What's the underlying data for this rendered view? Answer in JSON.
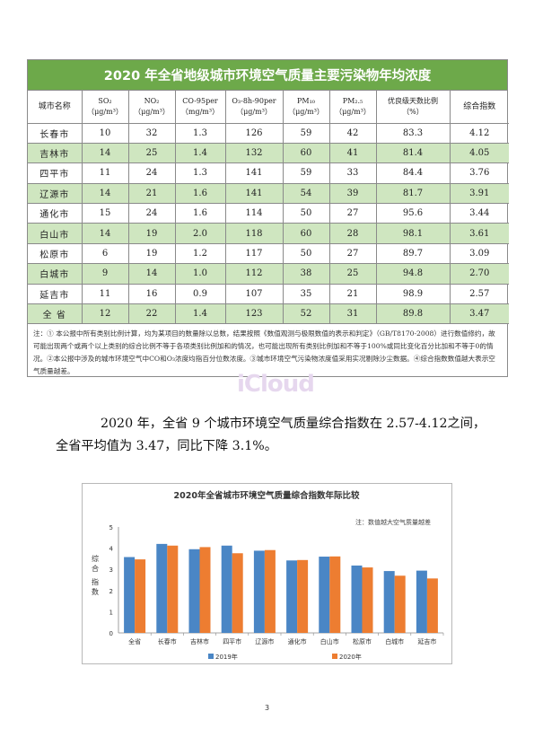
{
  "table": {
    "title": "2020 年全省地级城市环境空气质量主要污染物年均浓度",
    "headers": [
      {
        "l1": "城市名称",
        "l2": ""
      },
      {
        "l1": "SO₂",
        "l2": "（μg/m³）"
      },
      {
        "l1": "NO₂",
        "l2": "（μg/m³）"
      },
      {
        "l1": "CO-95per",
        "l2": "（mg/m³）"
      },
      {
        "l1": "O₃-8h-90per",
        "l2": "（μg/m³）"
      },
      {
        "l1": "PM₁₀",
        "l2": "（μg/m³）"
      },
      {
        "l1": "PM₂.₅",
        "l2": "（μg/m³）"
      },
      {
        "l1": "优良级天数比例",
        "l2": "（%）"
      },
      {
        "l1": "综合指数",
        "l2": ""
      }
    ],
    "rows": [
      [
        "长春市",
        "10",
        "32",
        "1.3",
        "126",
        "59",
        "42",
        "83.3",
        "4.12"
      ],
      [
        "吉林市",
        "14",
        "25",
        "1.4",
        "132",
        "60",
        "41",
        "81.4",
        "4.05"
      ],
      [
        "四平市",
        "11",
        "24",
        "1.3",
        "141",
        "59",
        "33",
        "84.4",
        "3.76"
      ],
      [
        "辽源市",
        "14",
        "21",
        "1.6",
        "141",
        "54",
        "39",
        "81.7",
        "3.91"
      ],
      [
        "通化市",
        "15",
        "24",
        "1.6",
        "114",
        "50",
        "27",
        "95.6",
        "3.44"
      ],
      [
        "白山市",
        "14",
        "19",
        "2.0",
        "118",
        "60",
        "28",
        "98.1",
        "3.61"
      ],
      [
        "松原市",
        "6",
        "19",
        "1.2",
        "117",
        "50",
        "27",
        "89.7",
        "3.09"
      ],
      [
        "白城市",
        "9",
        "14",
        "1.0",
        "112",
        "38",
        "25",
        "94.8",
        "2.70"
      ],
      [
        "延吉市",
        "11",
        "16",
        "0.9",
        "107",
        "35",
        "21",
        "98.9",
        "2.57"
      ],
      [
        "全  省",
        "12",
        "22",
        "1.4",
        "123",
        "52",
        "31",
        "89.8",
        "3.47"
      ]
    ],
    "note": "注：① 本公报中所有类别比例计算，均为某项目的数量除以总数，结果按照《数值观测与极限数值的表示和判定》（GB/T8170-2008）进行数值修约，故可能出现两个或两个以上类别的综合比例不等于各项类别比例加和的情况，也可能出现所有类别比例加和不等于100%或同比变化百分比加和不等于0的情况。②本公报中涉及的城市环境空气中CO和O₃浓度均指百分位数浓度。③城市环境空气污染物浓度值采用实况剔除沙尘数据。④综合指数数值越大表示空气质量越差。"
  },
  "watermark": "iCloud",
  "paragraph": "2020 年，全省 9 个城市环境空气质量综合指数在 2.57-4.12之间，全省平均值为 3.47，同比下降 3.1%。",
  "chart_data": {
    "type": "bar",
    "title": "2020年全省城市环境空气质量综合指数年际比较",
    "annotation": "注：数值越大空气质量越差",
    "ylabel": "综合指数",
    "ylim": [
      0,
      5
    ],
    "yticks": [
      "0",
      "1",
      "2",
      "3",
      "4",
      "5"
    ],
    "categories": [
      "全省",
      "长春市",
      "吉林市",
      "四平市",
      "辽源市",
      "通化市",
      "白山市",
      "松原市",
      "白城市",
      "延吉市"
    ],
    "series": [
      {
        "name": "2019年",
        "values": [
          3.58,
          4.2,
          3.95,
          4.12,
          3.88,
          3.42,
          3.6,
          3.18,
          2.92,
          2.94
        ]
      },
      {
        "name": "2020年",
        "values": [
          3.47,
          4.12,
          4.05,
          3.76,
          3.91,
          3.44,
          3.61,
          3.09,
          2.7,
          2.57
        ]
      }
    ],
    "colors": [
      "#4a86c5",
      "#ed7d31"
    ],
    "legend": "bottom",
    "grid": false
  },
  "page_number": "3"
}
